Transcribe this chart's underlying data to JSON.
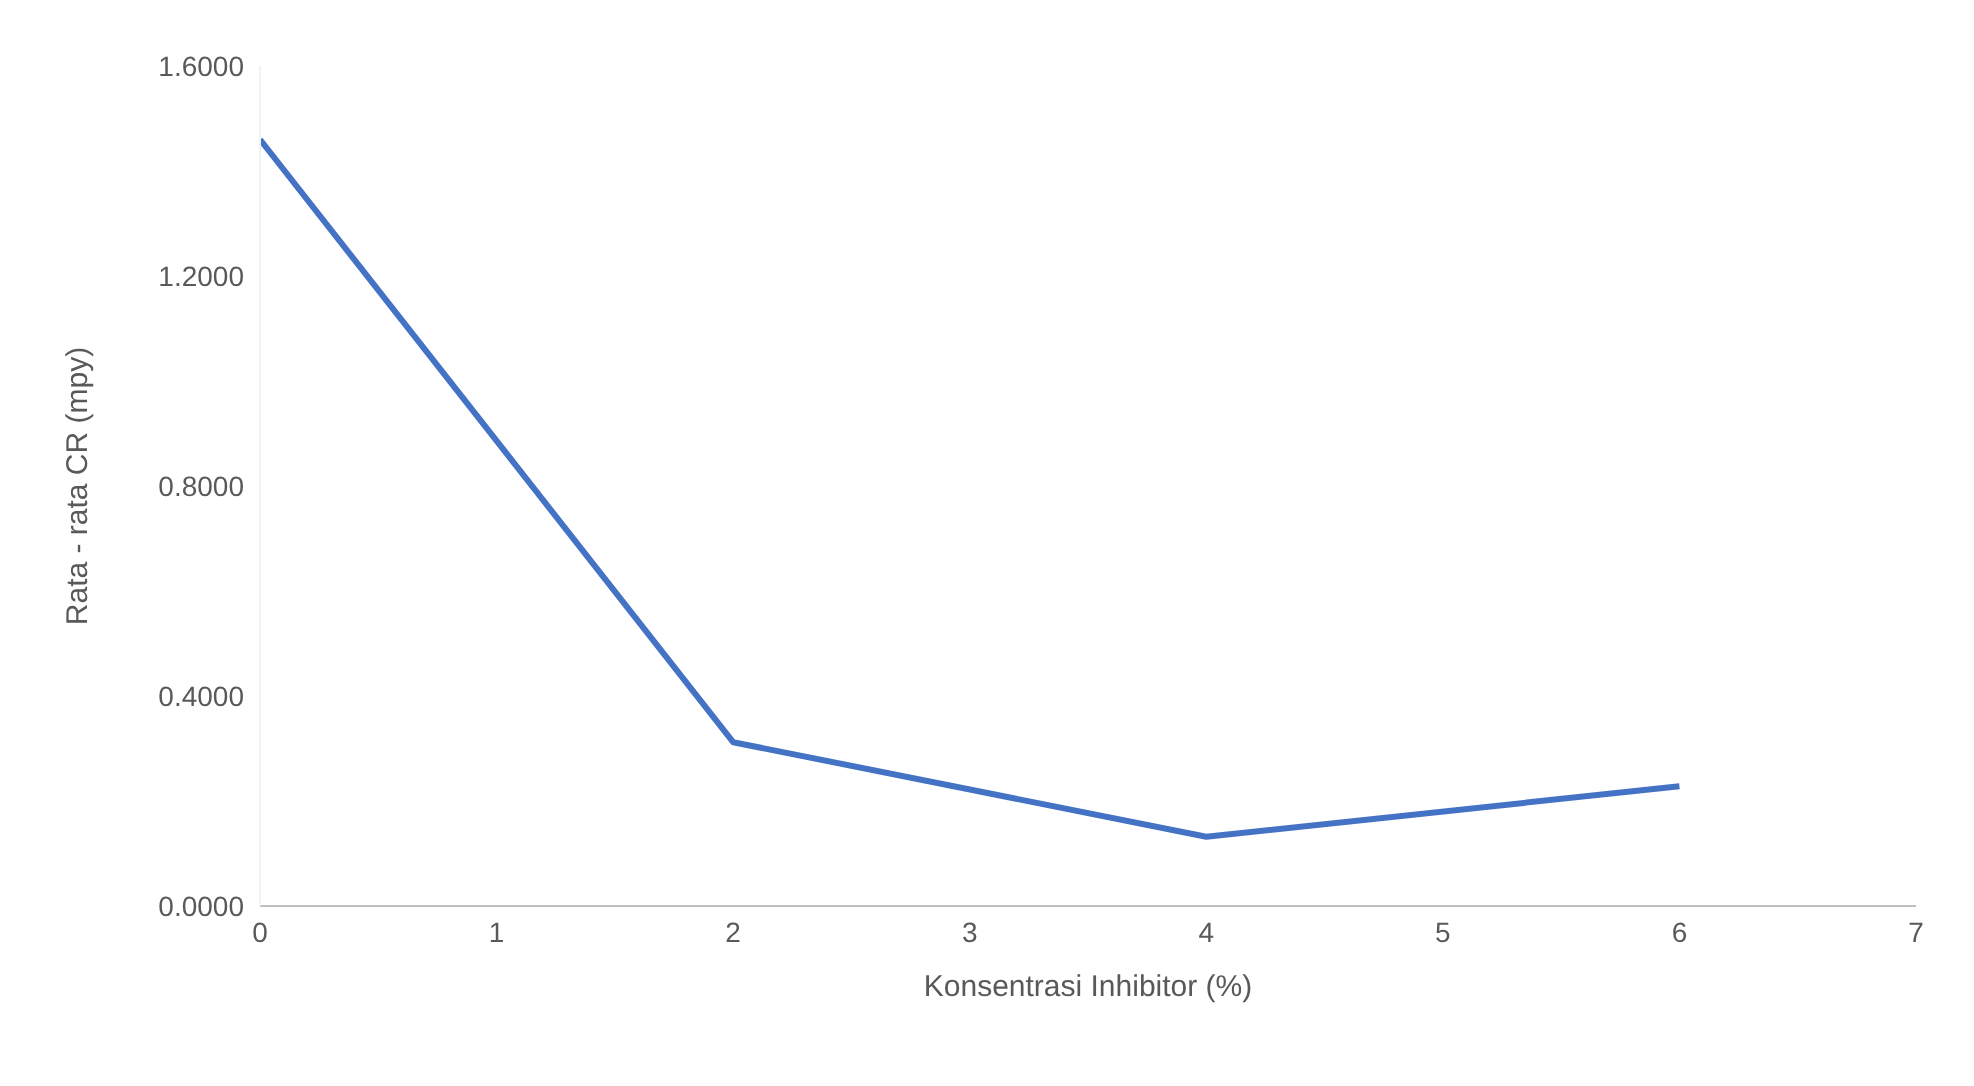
{
  "chart_data": {
    "type": "line",
    "xlabel": "Konsentrasi Inhibitor (%)",
    "ylabel": "Rata - rata CR (mpy)",
    "x": [
      0,
      2,
      4,
      6
    ],
    "series": [
      {
        "color": "#4472c4",
        "values": [
          1.46,
          0.312,
          0.132,
          0.228
        ]
      }
    ],
    "xlim": [
      0,
      7
    ],
    "xticks": [
      0,
      1,
      2,
      3,
      4,
      5,
      6,
      7
    ],
    "ylim": [
      0,
      1.6
    ],
    "yticks": [
      {
        "value": 0,
        "label": "0.0000"
      },
      {
        "value": 0.4,
        "label": "0.4000"
      },
      {
        "value": 0.8,
        "label": "0.8000"
      },
      {
        "value": 1.2,
        "label": "1.2000"
      },
      {
        "value": 1.6,
        "label": "1.6000"
      }
    ],
    "grid": false,
    "legend": false,
    "marker": "none",
    "line_style": "solid"
  }
}
